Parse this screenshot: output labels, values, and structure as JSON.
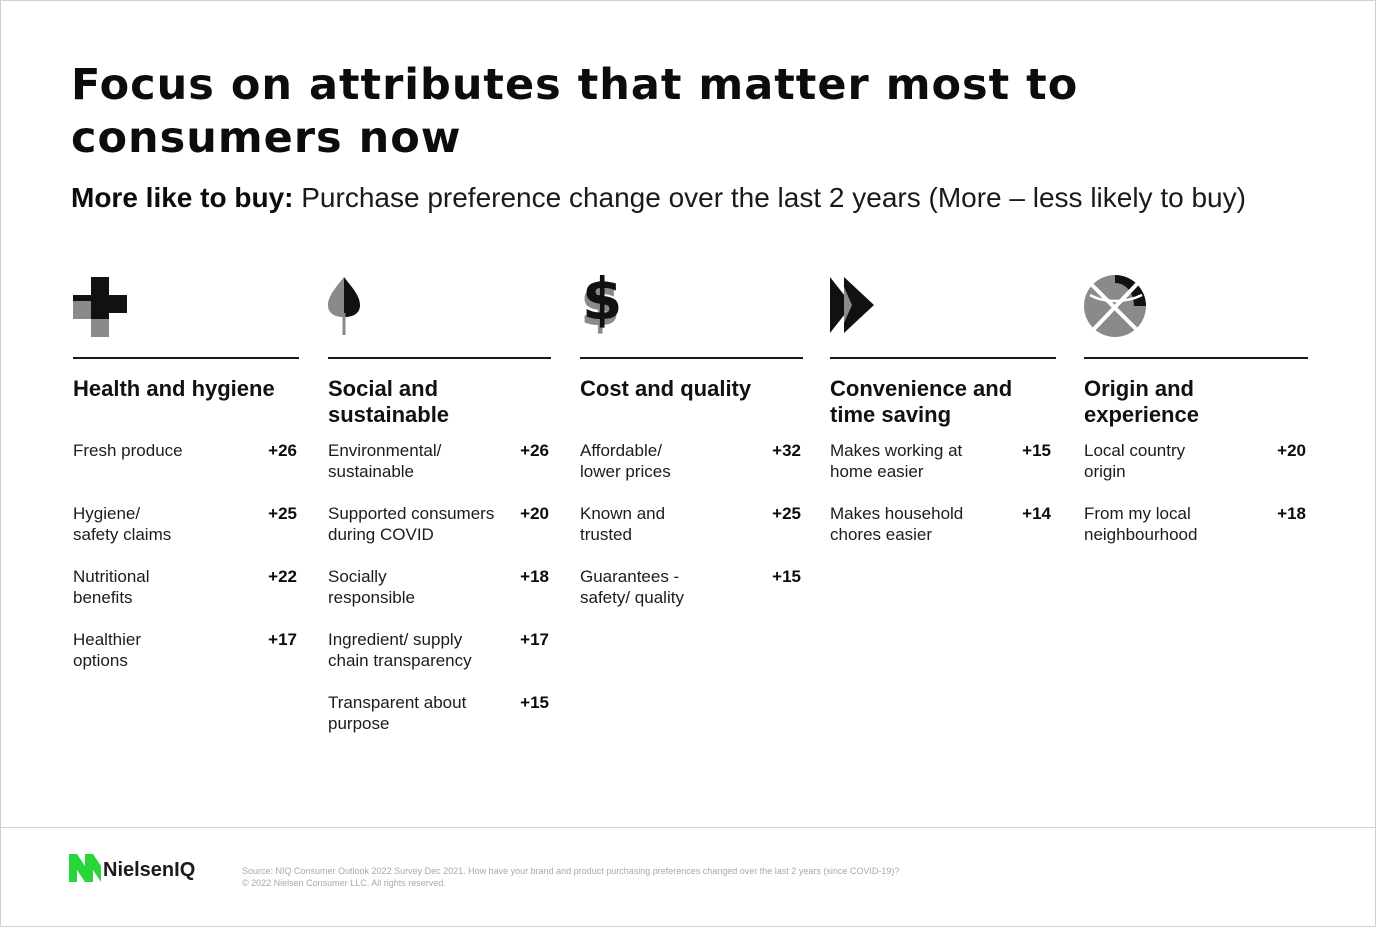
{
  "title": "Focus on attributes that matter most to consumers now",
  "subtitle": {
    "bold": "More like to buy:",
    "rest": " Purchase preference change over the last 2 years (More – less likely to buy)"
  },
  "columns": [
    {
      "icon": "medical-cross-icon",
      "title": "Health and hygiene",
      "items": [
        {
          "label": "Fresh produce",
          "value": "+26"
        },
        {
          "label": "Hygiene/ safety claims",
          "value": "+25"
        },
        {
          "label": "Nutritional benefits",
          "value": "+22"
        },
        {
          "label": "Healthier options",
          "value": "+17"
        }
      ]
    },
    {
      "icon": "tree-leaf-icon",
      "title": "Social and sustainable",
      "items": [
        {
          "label": "Environmental/ sustainable",
          "value": "+26"
        },
        {
          "label": "Supported consumers during COVID",
          "value": "+20"
        },
        {
          "label": "Socially responsible",
          "value": "+18"
        },
        {
          "label": "Ingredient/ supply chain transparency",
          "value": "+17"
        },
        {
          "label": "Transparent about purpose",
          "value": "+15"
        }
      ]
    },
    {
      "icon": "dollar-sign-icon",
      "title": "Cost and quality",
      "items": [
        {
          "label": "Affordable/ lower prices",
          "value": "+32"
        },
        {
          "label": "Known and trusted",
          "value": "+25"
        },
        {
          "label": "Guarantees - safety/ quality",
          "value": "+15"
        }
      ]
    },
    {
      "icon": "fast-forward-icon",
      "title": "Convenience and time saving",
      "items": [
        {
          "label": "Makes working at home easier",
          "value": "+15"
        },
        {
          "label": "Makes household chores easier",
          "value": "+14"
        }
      ]
    },
    {
      "icon": "globe-icon",
      "title": "Origin and experience",
      "items": [
        {
          "label": "Local country origin",
          "value": "+20"
        },
        {
          "label": "From my local neighbourhood",
          "value": "+18"
        }
      ]
    }
  ],
  "footer": {
    "logo_text": "NielsenIQ",
    "source_line1": "Source: NIQ Consumer Outlook 2022 Survey Dec 2021. How have your brand and product purchasing preferences changed over the last 2 years (since COVID-19)?",
    "source_line2": "© 2022 Nielsen Consumer LLC. All rights reserved."
  },
  "colors": {
    "text": "#111111",
    "icon_dark": "#111111",
    "icon_grey": "#8a8a8a",
    "logo_green": "#28d53a"
  }
}
